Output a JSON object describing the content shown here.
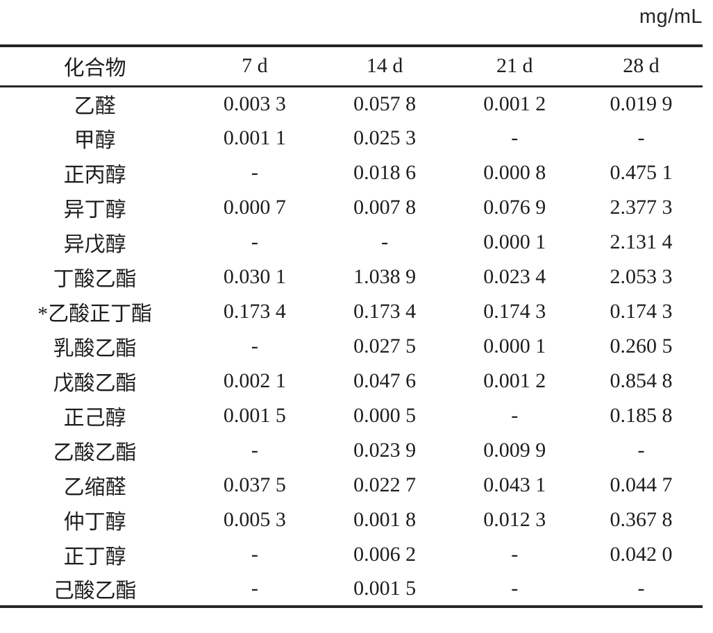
{
  "unit_label": "mg/mL",
  "table": {
    "columns": [
      "化合物",
      "7 d",
      "14 d",
      "21 d",
      "28 d"
    ],
    "rows": [
      {
        "compound": "乙醛",
        "values": [
          "0.003 3",
          "0.057 8",
          "0.001 2",
          "0.019 9"
        ]
      },
      {
        "compound": "甲醇",
        "values": [
          "0.001 1",
          "0.025 3",
          "-",
          "-"
        ]
      },
      {
        "compound": "正丙醇",
        "values": [
          "-",
          "0.018 6",
          "0.000 8",
          "0.475 1"
        ]
      },
      {
        "compound": "异丁醇",
        "values": [
          "0.000 7",
          "0.007 8",
          "0.076 9",
          "2.377 3"
        ]
      },
      {
        "compound": "异戊醇",
        "values": [
          "-",
          "-",
          "0.000 1",
          "2.131 4"
        ]
      },
      {
        "compound": "丁酸乙酯",
        "values": [
          "0.030 1",
          "1.038 9",
          "0.023 4",
          "2.053 3"
        ]
      },
      {
        "compound": "*乙酸正丁酯",
        "values": [
          "0.173 4",
          "0.173 4",
          "0.174 3",
          "0.174 3"
        ]
      },
      {
        "compound": "乳酸乙酯",
        "values": [
          "-",
          "0.027 5",
          "0.000 1",
          "0.260 5"
        ]
      },
      {
        "compound": "戊酸乙酯",
        "values": [
          "0.002 1",
          "0.047 6",
          "0.001 2",
          "0.854 8"
        ]
      },
      {
        "compound": "正己醇",
        "values": [
          "0.001 5",
          "0.000 5",
          "-",
          "0.185 8"
        ]
      },
      {
        "compound": "乙酸乙酯",
        "values": [
          "-",
          "0.023 9",
          "0.009 9",
          "-"
        ]
      },
      {
        "compound": "乙缩醛",
        "values": [
          "0.037 5",
          "0.022 7",
          "0.043 1",
          "0.044 7"
        ]
      },
      {
        "compound": "仲丁醇",
        "values": [
          "0.005 3",
          "0.001 8",
          "0.012 3",
          "0.367 8"
        ]
      },
      {
        "compound": "正丁醇",
        "values": [
          "-",
          "0.006 2",
          "-",
          "0.042 0"
        ]
      },
      {
        "compound": "己酸乙酯",
        "values": [
          "-",
          "0.001 5",
          "-",
          "-"
        ]
      }
    ]
  }
}
